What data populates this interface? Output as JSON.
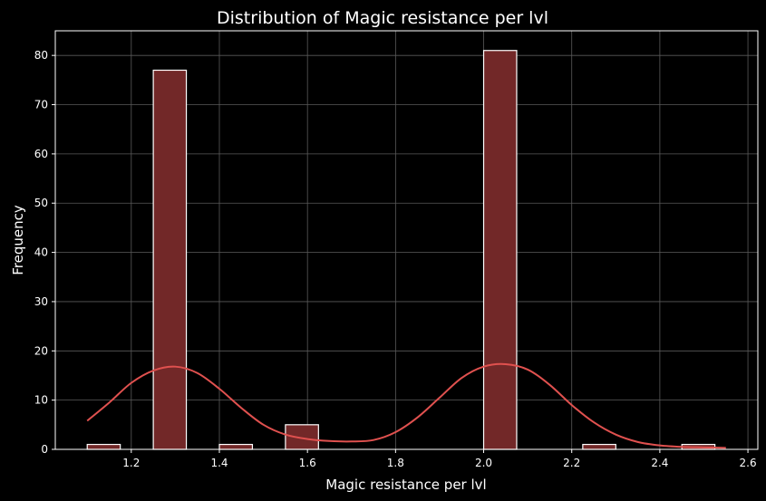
{
  "chart_data": {
    "type": "bar",
    "title": "Distribution of Magic resistance per lvl",
    "xlabel": "Magic resistance per lvl",
    "ylabel": "Frequency",
    "xlim": [
      1.0275,
      2.6225
    ],
    "ylim": [
      0,
      85
    ],
    "xticks": [
      1.2,
      1.4,
      1.6,
      1.8,
      2.0,
      2.2,
      2.4,
      2.6
    ],
    "xtick_labels": [
      "1.2",
      "1.4",
      "1.6",
      "1.8",
      "2.0",
      "2.2",
      "2.4",
      "2.6"
    ],
    "yticks": [
      0,
      10,
      20,
      30,
      40,
      50,
      60,
      70,
      80
    ],
    "ytick_labels": [
      "0",
      "10",
      "20",
      "30",
      "40",
      "50",
      "60",
      "70",
      "80"
    ],
    "grid": true,
    "bins": [
      {
        "x0": 1.1,
        "x1": 1.175,
        "value": 1
      },
      {
        "x0": 1.175,
        "x1": 1.25,
        "value": 0
      },
      {
        "x0": 1.25,
        "x1": 1.325,
        "value": 77
      },
      {
        "x0": 1.325,
        "x1": 1.4,
        "value": 0
      },
      {
        "x0": 1.4,
        "x1": 1.475,
        "value": 1
      },
      {
        "x0": 1.475,
        "x1": 1.55,
        "value": 0
      },
      {
        "x0": 1.55,
        "x1": 1.625,
        "value": 5
      },
      {
        "x0": 1.625,
        "x1": 1.7,
        "value": 0
      },
      {
        "x0": 1.7,
        "x1": 1.775,
        "value": 0
      },
      {
        "x0": 1.775,
        "x1": 1.85,
        "value": 0
      },
      {
        "x0": 1.85,
        "x1": 1.925,
        "value": 0
      },
      {
        "x0": 1.925,
        "x1": 2.0,
        "value": 0
      },
      {
        "x0": 2.0,
        "x1": 2.075,
        "value": 81
      },
      {
        "x0": 2.075,
        "x1": 2.15,
        "value": 0
      },
      {
        "x0": 2.15,
        "x1": 2.225,
        "value": 0
      },
      {
        "x0": 2.225,
        "x1": 2.3,
        "value": 1
      },
      {
        "x0": 2.3,
        "x1": 2.375,
        "value": 0
      },
      {
        "x0": 2.375,
        "x1": 2.45,
        "value": 0
      },
      {
        "x0": 2.45,
        "x1": 2.525,
        "value": 1
      }
    ],
    "kde": {
      "x": [
        1.1,
        1.15,
        1.2,
        1.25,
        1.3,
        1.35,
        1.4,
        1.45,
        1.5,
        1.55,
        1.6,
        1.65,
        1.7,
        1.75,
        1.8,
        1.85,
        1.9,
        1.95,
        2.0,
        2.05,
        2.1,
        2.15,
        2.2,
        2.25,
        2.3,
        2.35,
        2.4,
        2.45,
        2.5,
        2.55
      ],
      "y": [
        5.8,
        9.5,
        13.5,
        16.0,
        16.8,
        15.5,
        12.3,
        8.4,
        5.0,
        3.0,
        2.1,
        1.7,
        1.6,
        1.9,
        3.5,
        6.5,
        10.5,
        14.5,
        16.8,
        17.3,
        16.2,
        13.1,
        9.0,
        5.5,
        3.0,
        1.5,
        0.8,
        0.5,
        0.4,
        0.3
      ]
    },
    "colors": {
      "background": "#000000",
      "bar_fill": "#722828",
      "bar_edge": "#ffffff",
      "kde_line": "#e0514f",
      "grid": "#5a5a5a",
      "axes": "#ffffff",
      "text": "#ffffff"
    }
  }
}
